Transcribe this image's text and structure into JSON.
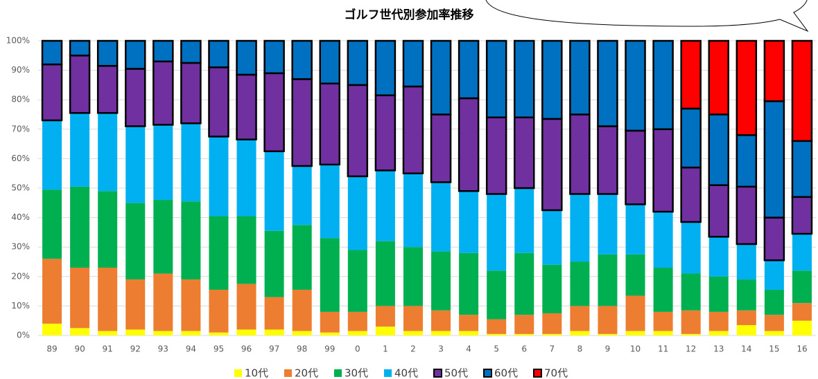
{
  "chart_data": {
    "type": "stacked_bar",
    "title": "ゴルフ世代別参加率推移",
    "categories": [
      "89",
      "90",
      "91",
      "92",
      "93",
      "94",
      "95",
      "96",
      "97",
      "98",
      "99",
      "0",
      "1",
      "2",
      "3",
      "4",
      "5",
      "6",
      "7",
      "8",
      "9",
      "10",
      "11",
      "12",
      "13",
      "14",
      "15",
      "16"
    ],
    "series": [
      {
        "name": "10代",
        "color": "#ffff00",
        "values": [
          4,
          2.5,
          1.5,
          2,
          1.5,
          1.5,
          1,
          2,
          2,
          1.5,
          1,
          1.5,
          3,
          1.5,
          1.5,
          1.5,
          0.5,
          0.5,
          0.5,
          1.5,
          0.5,
          1.5,
          1.5,
          0.5,
          1.5,
          3.5,
          1.5,
          5
        ]
      },
      {
        "name": "20代",
        "color": "#ed7d31",
        "values": [
          22,
          20.5,
          21.5,
          17,
          19.5,
          17.5,
          14.5,
          15.5,
          11,
          14,
          7,
          6.5,
          7,
          8.5,
          7,
          5.5,
          5,
          6.5,
          7,
          8.5,
          9.5,
          12,
          6.5,
          8,
          6.5,
          5,
          5.5,
          6
        ]
      },
      {
        "name": "30代",
        "color": "#00b050",
        "values": [
          23.5,
          27.5,
          26,
          26,
          25,
          26.5,
          25,
          23,
          22.5,
          22,
          25,
          21,
          22,
          20,
          20,
          21,
          16.5,
          21,
          16.5,
          15,
          17.5,
          14,
          15,
          12.5,
          12,
          10.5,
          8.5,
          11
        ]
      },
      {
        "name": "40代",
        "color": "#00b0f0",
        "values": [
          23.5,
          25,
          26.5,
          26,
          25.5,
          26.5,
          27,
          26,
          27,
          20,
          25,
          25,
          24,
          25,
          23.5,
          21,
          26,
          22,
          18.5,
          23,
          20.5,
          17,
          19,
          17.5,
          13.5,
          12,
          10,
          12.5
        ]
      },
      {
        "name": "50代",
        "color": "#7030a0",
        "edgecolor": "#000000",
        "values": [
          19,
          19.5,
          16,
          19.5,
          21.5,
          20.5,
          23.5,
          22,
          26.5,
          29.5,
          27.5,
          31,
          25.5,
          29.5,
          23,
          31.5,
          26,
          24,
          31,
          27,
          23,
          25,
          28,
          18.5,
          17.5,
          19.5,
          14.5,
          12.5
        ]
      },
      {
        "name": "60代",
        "color": "#0070c0",
        "edgecolor": "#000000",
        "values": [
          8,
          5,
          8.5,
          9.5,
          7,
          7.5,
          9,
          11.5,
          11,
          13,
          14.5,
          15,
          18.5,
          15.5,
          25,
          19.5,
          26,
          26,
          26.5,
          25,
          29,
          30.5,
          30,
          20,
          24,
          17.5,
          39.5,
          19
        ]
      },
      {
        "name": "70代",
        "color": "#ff0000",
        "edgecolor": "#000000",
        "values": [
          null,
          null,
          null,
          null,
          null,
          null,
          null,
          null,
          null,
          null,
          null,
          null,
          null,
          null,
          null,
          null,
          null,
          null,
          null,
          null,
          null,
          null,
          null,
          23,
          25,
          32,
          20.5,
          34
        ]
      }
    ],
    "ylim": [
      0,
      100
    ],
    "yticks": [
      {
        "value": 0,
        "label": "0%"
      },
      {
        "value": 10,
        "label": "10%"
      },
      {
        "value": 20,
        "label": "20%"
      },
      {
        "value": 30,
        "label": "30%"
      },
      {
        "value": 40,
        "label": "40%"
      },
      {
        "value": 50,
        "label": "50%"
      },
      {
        "value": 60,
        "label": "60%"
      },
      {
        "value": 70,
        "label": "70%"
      },
      {
        "value": 80,
        "label": "80%"
      },
      {
        "value": 90,
        "label": "90%"
      },
      {
        "value": 100,
        "label": "100%"
      }
    ],
    "grid": true,
    "legend": "bottom"
  }
}
